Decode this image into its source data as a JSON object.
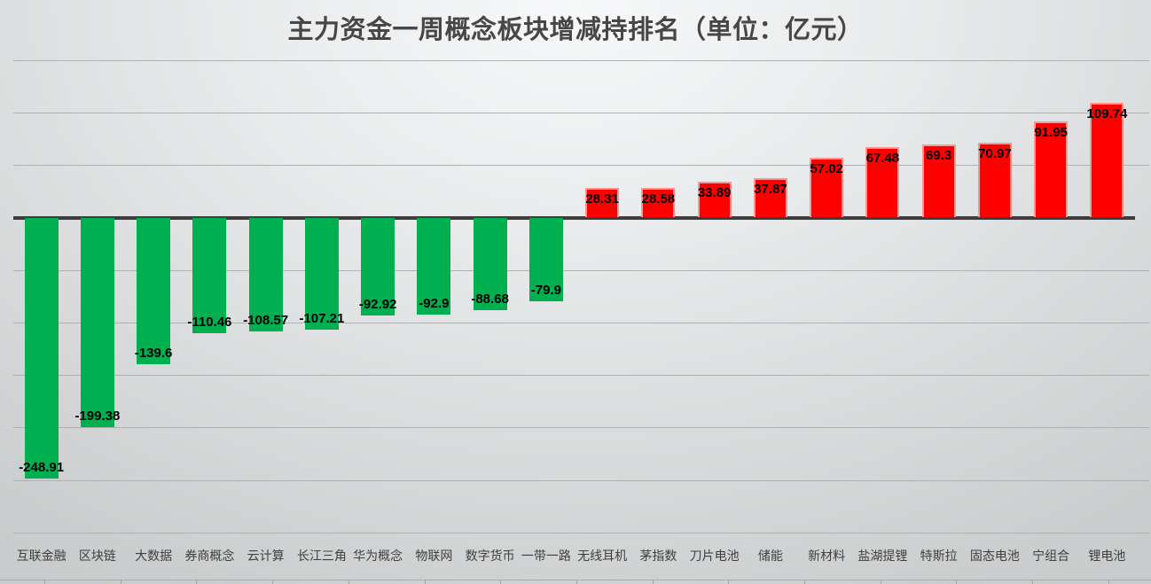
{
  "chart_data": {
    "type": "bar",
    "title": "主力资金一周概念板块增减持排名（单位：亿元）",
    "unit": "亿元",
    "xlabel": "",
    "ylabel": "",
    "categories": [
      "互联金融",
      "区块链",
      "大数据",
      "券商概念",
      "云计算",
      "长江三角",
      "华为概念",
      "物联网",
      "数字货币",
      "一带一路",
      "无线耳机",
      "茅指数",
      "刀片电池",
      "储能",
      "新材料",
      "盐湖提锂",
      "特斯拉",
      "固态电池",
      "宁组合",
      "锂电池"
    ],
    "values": [
      -248.91,
      -199.38,
      -139.6,
      -110.46,
      -108.57,
      -107.21,
      -92.92,
      -92.9,
      -88.68,
      -79.9,
      28.31,
      28.58,
      33.89,
      37.87,
      57.02,
      67.48,
      69.3,
      70.97,
      91.95,
      109.74
    ],
    "ylim": [
      -300,
      150
    ],
    "grid_interval": 50,
    "grid": "horizontal",
    "legend": "none",
    "y_axis_tick_labels": "hidden",
    "value_label_position": "inside-end",
    "colors": {
      "positive_bar": "#ff0000",
      "positive_bar_border": "#ff9494",
      "negative_bar": "#00b050",
      "zero_axis_line": "#3d3d3d",
      "gridline": "#aeb0b1",
      "value_label": "#000000",
      "category_label": "#3f3f3f",
      "title_text": "#474747"
    }
  }
}
